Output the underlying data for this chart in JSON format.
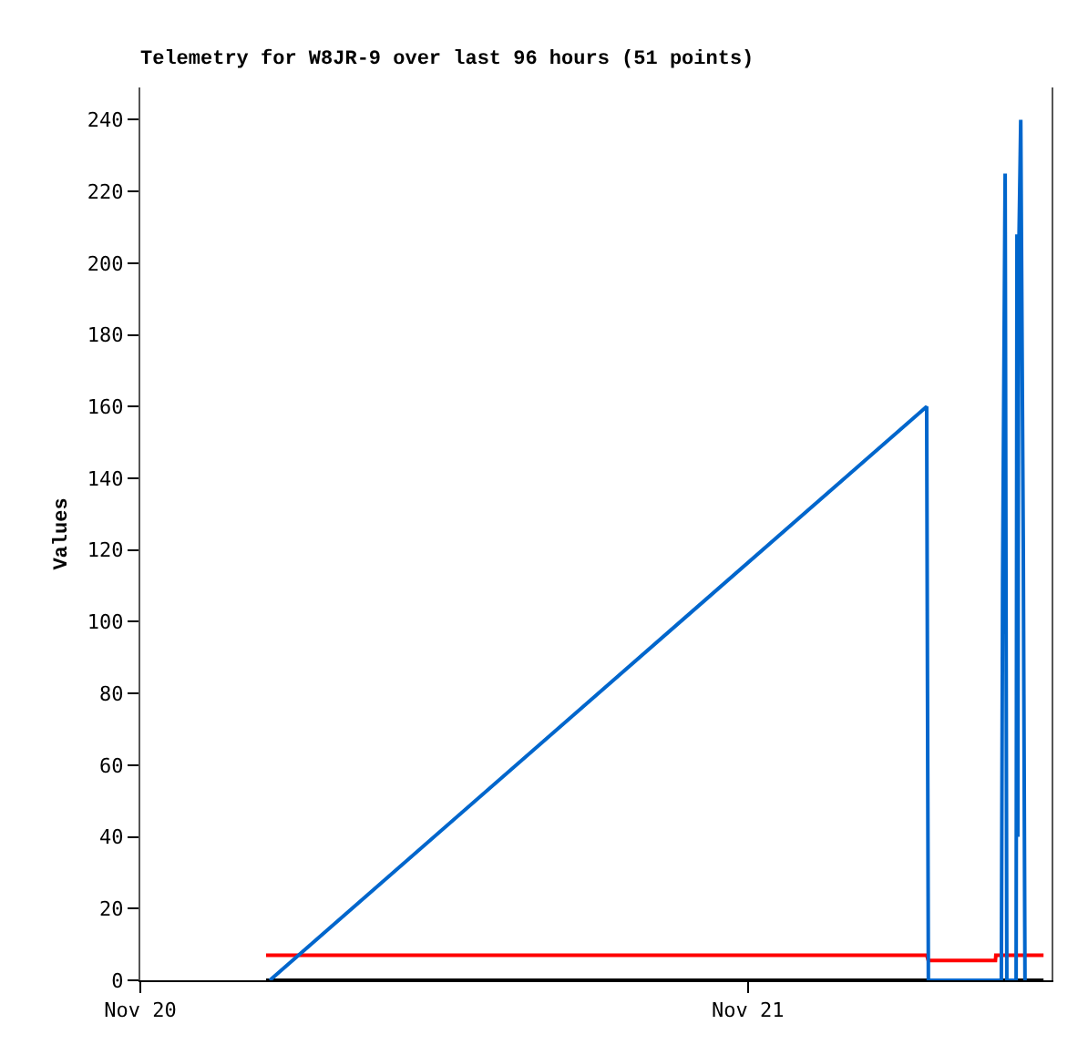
{
  "chart_data": {
    "type": "line",
    "title": "Telemetry for W8JR-9 over last 96 hours (51 points)",
    "ylabel": "Values",
    "xlim": [
      "--11-20T00:00",
      "--11-21T12:00"
    ],
    "xticks": [
      {
        "value": "--11-20T00:00",
        "label": "Nov 20"
      },
      {
        "value": "--11-21T00:00",
        "label": "Nov 21"
      }
    ],
    "ylim": [
      0,
      249
    ],
    "yticks": [
      0,
      20,
      40,
      60,
      80,
      100,
      120,
      140,
      160,
      180,
      200,
      220,
      240
    ],
    "line_style": "solid",
    "series": [
      {
        "color": "#000000",
        "x": [
          "--11-20T04:58",
          "--11-21T11:41"
        ],
        "values": [
          0,
          0
        ]
      },
      {
        "color": "#ff0000",
        "x": [
          "--11-20T04:58",
          "--11-21T07:04",
          "--11-21T07:08",
          "--11-21T09:47",
          "--11-21T09:48",
          "--11-21T11:41"
        ],
        "values": [
          7,
          7,
          5.5,
          5.5,
          7,
          7
        ]
      },
      {
        "color": "#0066cc",
        "x": [
          "--11-20T05:07",
          "--11-21T07:04",
          "--11-21T07:06",
          "--11-21T07:08",
          "--11-21T10:01",
          "--11-21T10:04",
          "--11-21T10:10",
          "--11-21T10:14",
          "--11-21T10:36",
          "--11-21T10:38",
          "--11-21T10:40",
          "--11-21T10:42",
          "--11-21T10:47",
          "--11-21T10:53",
          "--11-21T10:57"
        ],
        "values": [
          0,
          160,
          80,
          0,
          0,
          112,
          225,
          0,
          0,
          208,
          40,
          200,
          240,
          120,
          0
        ]
      }
    ]
  }
}
